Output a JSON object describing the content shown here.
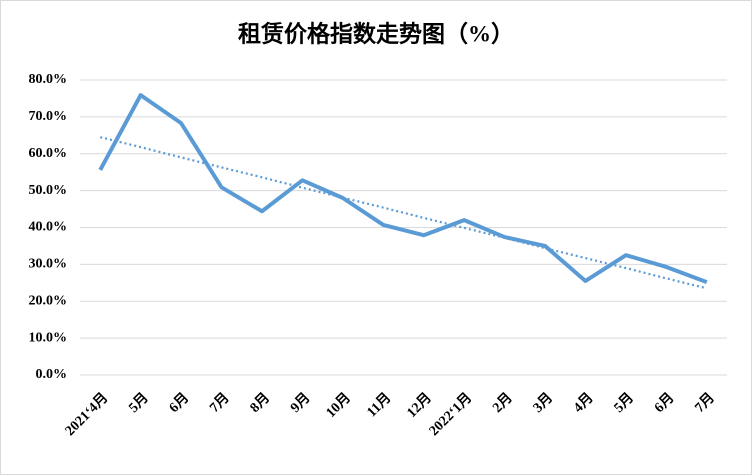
{
  "chart_data": {
    "type": "line",
    "title": "租赁价格指数走势图（%）",
    "categories": [
      "2021‘4月",
      "5月",
      "6月",
      "7月",
      "8月",
      "9月",
      "10月",
      "11月",
      "12月",
      "2022‘1月",
      "2月",
      "3月",
      "4月",
      "5月",
      "6月",
      "7月"
    ],
    "series": [
      {
        "color": "#5b9bd5",
        "values": [
          55.6,
          75.9,
          68.3,
          50.9,
          44.4,
          52.8,
          48.0,
          40.7,
          37.9,
          42.0,
          37.4,
          35.0,
          25.5,
          32.5,
          29.3,
          25.2
        ]
      },
      {
        "color": "#5b9bd5",
        "dash": "dotted",
        "values": [
          64.5,
          61.8,
          59.0,
          56.3,
          53.6,
          50.8,
          48.1,
          45.4,
          42.6,
          39.9,
          37.2,
          34.4,
          31.7,
          29.0,
          26.2,
          23.5
        ]
      }
    ],
    "ylim": [
      0,
      80
    ],
    "yticks": [
      {
        "value": 0,
        "label": "0.0%"
      },
      {
        "value": 10,
        "label": "10.0%"
      },
      {
        "value": 20,
        "label": "20.0%"
      },
      {
        "value": 30,
        "label": "30.0%"
      },
      {
        "value": 40,
        "label": "40.0%"
      },
      {
        "value": 50,
        "label": "50.0%"
      },
      {
        "value": 60,
        "label": "60.0%"
      },
      {
        "value": 70,
        "label": "70.0%"
      },
      {
        "value": 80,
        "label": "80.0%"
      }
    ],
    "grid": true
  }
}
